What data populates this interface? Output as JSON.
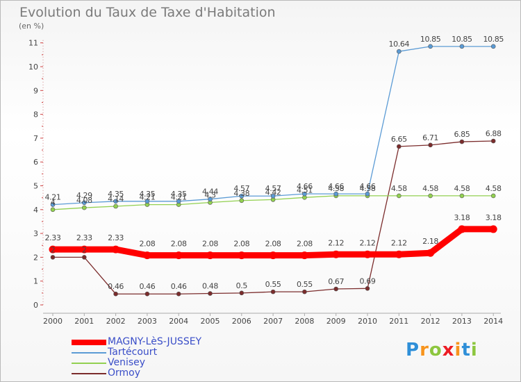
{
  "chart_data": {
    "type": "line",
    "title": "Evolution du Taux de Taxe d'Habitation",
    "unit_label": "(en %)",
    "x": [
      2000,
      2001,
      2002,
      2003,
      2004,
      2005,
      2006,
      2007,
      2008,
      2009,
      2010,
      2011,
      2012,
      2013,
      2014
    ],
    "ylim": [
      0,
      11
    ],
    "yticks": [
      0,
      1,
      2,
      3,
      4,
      5,
      6,
      7,
      8,
      9,
      10,
      11
    ],
    "grid": false,
    "legend_position": "bottom-left",
    "series": [
      {
        "name": "MAGNY-LèS-JUSSEY",
        "color": "#ff0000",
        "values": [
          2.33,
          2.33,
          2.33,
          2.08,
          2.08,
          2.08,
          2.08,
          2.08,
          2.08,
          2.12,
          2.12,
          2.12,
          2.18,
          3.18,
          3.18
        ],
        "labels": [
          "2.33",
          "2.33",
          "2.33",
          "2.08",
          "2.08",
          "2.08",
          "2.08",
          "2.08",
          "2.08",
          "2.12",
          "2.12",
          "2.12",
          "2.18",
          "3.18",
          "3.18"
        ]
      },
      {
        "name": "Tartécourt",
        "color": "#5b9bd5",
        "values": [
          4.21,
          4.29,
          4.35,
          4.35,
          4.35,
          4.44,
          4.57,
          4.57,
          4.66,
          4.66,
          4.66,
          10.64,
          10.85,
          10.85,
          10.85
        ],
        "labels": [
          "4.21",
          "4.29",
          "4.35",
          "4.35",
          "4.35",
          "4.44",
          "4.57",
          "4.57",
          "4.66",
          "4.66",
          "4.66",
          "10.64",
          "10.85",
          "10.85",
          "10.85"
        ]
      },
      {
        "name": "Venisey",
        "color": "#92d050",
        "values": [
          4.0,
          4.08,
          4.14,
          4.21,
          4.21,
          4.3,
          4.38,
          4.42,
          4.51,
          4.58,
          4.58,
          4.58,
          4.58,
          4.58,
          4.58
        ],
        "labels": [
          "4",
          "4.08",
          "4.14",
          "4.21",
          "4.21",
          "4.3",
          "4.38",
          "4.42",
          "4.51",
          "4.58",
          "4.58",
          "4.58",
          "4.58",
          "4.58",
          "4.58"
        ]
      },
      {
        "name": "Ormoy",
        "color": "#7b2c2c",
        "values": [
          2.0,
          2.0,
          0.46,
          0.46,
          0.46,
          0.48,
          0.5,
          0.55,
          0.55,
          0.67,
          0.69,
          6.65,
          6.71,
          6.85,
          6.88
        ],
        "labels": [
          "2",
          "2",
          "0.46",
          "0.46",
          "0.46",
          "0.48",
          "0.5",
          "0.55",
          "0.55",
          "0.67",
          "0.69",
          "6.65",
          "6.71",
          "6.85",
          "6.88"
        ]
      }
    ]
  },
  "logo": {
    "letters": [
      "P",
      "r",
      "o",
      "x",
      "i",
      "t",
      "i"
    ],
    "colors": [
      "#2f8fd8",
      "#f7941d",
      "#8dc63f",
      "#ec1c24",
      "#f7941d",
      "#2f8fd8",
      "#8dc63f"
    ]
  }
}
